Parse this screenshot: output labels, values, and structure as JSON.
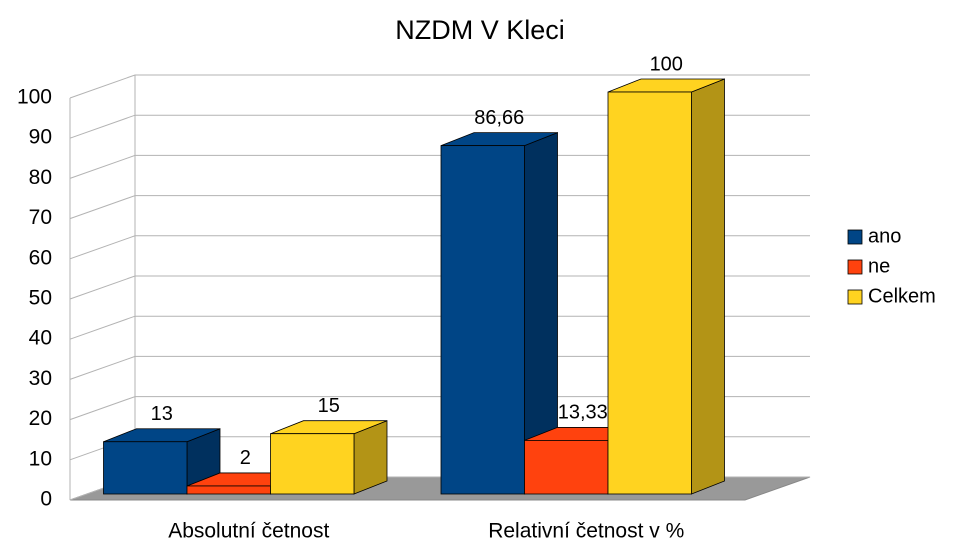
{
  "chart_data": {
    "type": "bar",
    "title": "NZDM V Kleci",
    "categories": [
      "Absolutní četnost",
      "Relativní četnost v %"
    ],
    "series": [
      {
        "name": "ano",
        "color": "#004586",
        "values": [
          13,
          86.66
        ],
        "value_labels": [
          "13",
          "86,66"
        ]
      },
      {
        "name": "ne",
        "color": "#ff420e",
        "values": [
          2,
          13.33
        ],
        "value_labels": [
          "2",
          "13,33"
        ]
      },
      {
        "name": "Celkem",
        "color": "#ffd320",
        "values": [
          15,
          100
        ],
        "value_labels": [
          "15",
          "100"
        ]
      }
    ],
    "ylim": [
      0,
      100
    ],
    "yticks": [
      0,
      10,
      20,
      30,
      40,
      50,
      60,
      70,
      80,
      90,
      100
    ],
    "grid": true,
    "legend": "right"
  }
}
